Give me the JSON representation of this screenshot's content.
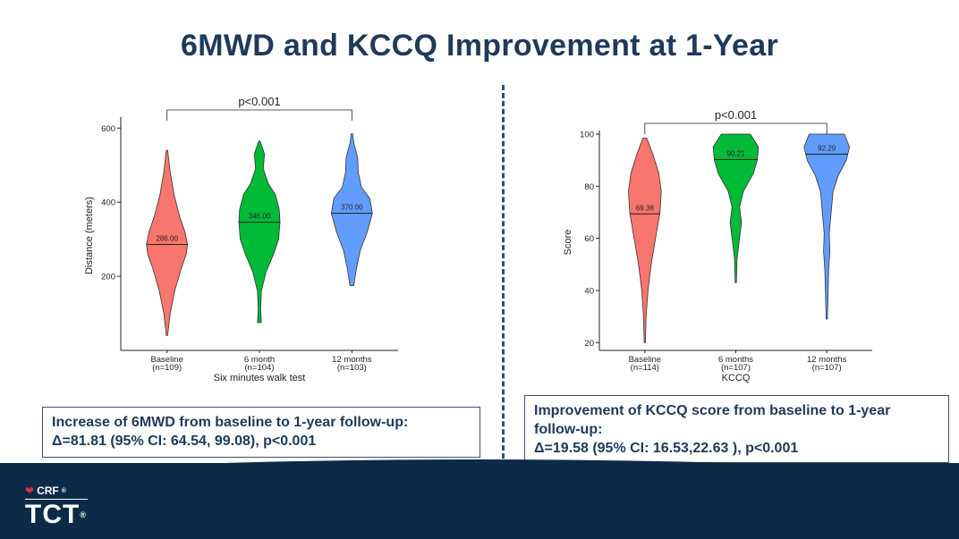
{
  "title": "6MWD and KCCQ Improvement at 1-Year",
  "chart_data": [
    {
      "type": "violin",
      "ylabel": "Distance (meters)",
      "xlabel": "Six minutes walk test",
      "ylim": [
        0,
        620
      ],
      "yticks": [
        200,
        400,
        600
      ],
      "pvalue": "p<0.001",
      "series": [
        {
          "category": "Baseline",
          "n_label": "(n=109)",
          "color": "#f8766d",
          "median": 286.0,
          "median_label": "286.00",
          "min": 40,
          "max": 540,
          "profile": [
            [
              40,
              0.01
            ],
            [
              100,
              0.05
            ],
            [
              160,
              0.12
            ],
            [
              220,
              0.22
            ],
            [
              260,
              0.3
            ],
            [
              286,
              0.32
            ],
            [
              320,
              0.28
            ],
            [
              360,
              0.2
            ],
            [
              420,
              0.11
            ],
            [
              480,
              0.05
            ],
            [
              540,
              0.01
            ]
          ]
        },
        {
          "category": "6 month",
          "n_label": "(n=104)",
          "color": "#00ba38",
          "median": 346.0,
          "median_label": "346.00",
          "min": 75,
          "max": 565,
          "profile": [
            [
              75,
              0.03
            ],
            [
              110,
              0.02
            ],
            [
              160,
              0.03
            ],
            [
              210,
              0.1
            ],
            [
              260,
              0.22
            ],
            [
              300,
              0.3
            ],
            [
              346,
              0.32
            ],
            [
              380,
              0.31
            ],
            [
              420,
              0.25
            ],
            [
              450,
              0.14
            ],
            [
              490,
              0.06
            ],
            [
              530,
              0.08
            ],
            [
              565,
              0.01
            ]
          ]
        },
        {
          "category": "12 months",
          "n_label": "(n=103)",
          "color": "#619cff",
          "median": 370.0,
          "median_label": "370.00",
          "min": 175,
          "max": 585,
          "profile": [
            [
              175,
              0.03
            ],
            [
              220,
              0.07
            ],
            [
              270,
              0.13
            ],
            [
              320,
              0.24
            ],
            [
              370,
              0.32
            ],
            [
              410,
              0.28
            ],
            [
              440,
              0.15
            ],
            [
              480,
              0.1
            ],
            [
              520,
              0.09
            ],
            [
              560,
              0.03
            ],
            [
              585,
              0.01
            ]
          ]
        }
      ]
    },
    {
      "type": "violin",
      "ylabel": "Score",
      "xlabel": "KCCQ",
      "ylim": [
        17,
        100
      ],
      "yticks": [
        20,
        40,
        60,
        80,
        100
      ],
      "pvalue": "p<0.001",
      "series": [
        {
          "category": "Baseline",
          "n_label": "(n=114)",
          "color": "#f8766d",
          "median": 69.38,
          "median_label": "69.38",
          "min": 20,
          "max": 98.5,
          "profile": [
            [
              20,
              0.01
            ],
            [
              30,
              0.02
            ],
            [
              40,
              0.05
            ],
            [
              50,
              0.1
            ],
            [
              60,
              0.17
            ],
            [
              70,
              0.24
            ],
            [
              78,
              0.26
            ],
            [
              85,
              0.22
            ],
            [
              92,
              0.13
            ],
            [
              98.5,
              0.03
            ]
          ]
        },
        {
          "category": "6 months",
          "n_label": "(n=107)",
          "color": "#00ba38",
          "median": 90.21,
          "median_label": "90.21",
          "min": 43,
          "max": 100,
          "profile": [
            [
              43,
              0.01
            ],
            [
              52,
              0.02
            ],
            [
              60,
              0.06
            ],
            [
              66,
              0.09
            ],
            [
              72,
              0.06
            ],
            [
              78,
              0.12
            ],
            [
              85,
              0.28
            ],
            [
              90,
              0.34
            ],
            [
              95,
              0.36
            ],
            [
              100,
              0.23
            ]
          ]
        },
        {
          "category": "12 months",
          "n_label": "(n=107)",
          "color": "#619cff",
          "median": 92.29,
          "median_label": "92.29",
          "min": 29,
          "max": 100,
          "profile": [
            [
              29,
              0.01
            ],
            [
              38,
              0.02
            ],
            [
              48,
              0.03
            ],
            [
              55,
              0.05
            ],
            [
              62,
              0.04
            ],
            [
              70,
              0.07
            ],
            [
              78,
              0.1
            ],
            [
              84,
              0.18
            ],
            [
              90,
              0.31
            ],
            [
              95,
              0.36
            ],
            [
              100,
              0.28
            ]
          ]
        }
      ]
    }
  ],
  "summaries": {
    "left": {
      "line1": "Increase of 6MWD from baseline to 1-year follow-up:",
      "line2": "Δ=81.81 (95% CI: 64.54, 99.08), p<0.001"
    },
    "right": {
      "line1": "Improvement of KCCQ score from baseline to 1-year",
      "line2": "follow-up:",
      "line3": "Δ=19.58 (95% CI: 16.53,22.63 ), p<0.001"
    }
  },
  "footer": {
    "org": "CRF",
    "org_mark": "®",
    "brand": "TCT",
    "brand_mark": "®"
  }
}
